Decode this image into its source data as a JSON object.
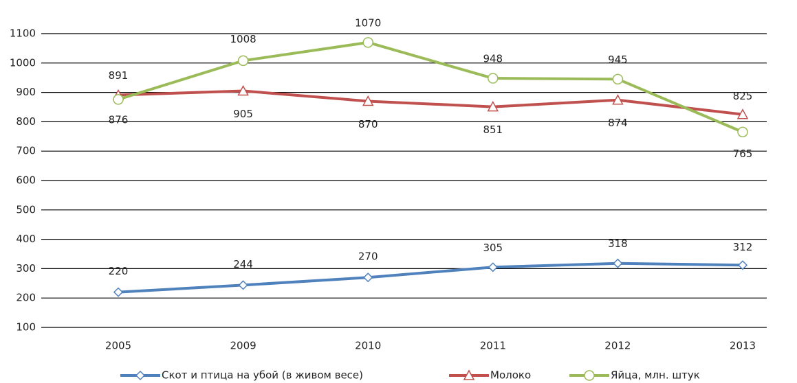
{
  "chart_data": {
    "type": "line",
    "categories": [
      "2005",
      "2009",
      "2010",
      "2011",
      "2012",
      "2013"
    ],
    "series": [
      {
        "name": "Скот и птица на убой (в живом весе)",
        "color": "#4f81bd",
        "marker": "diamond",
        "values": [
          220,
          244,
          270,
          305,
          318,
          312
        ]
      },
      {
        "name": "Молоко",
        "color": "#c0504d",
        "marker": "triangle",
        "values": [
          891,
          905,
          870,
          851,
          874,
          825
        ]
      },
      {
        "name": "Яйца, млн. штук",
        "color": "#9bbb59",
        "marker": "circle",
        "values": [
          876,
          1008,
          1070,
          948,
          945,
          765
        ]
      }
    ],
    "ylim": [
      100,
      1100
    ],
    "yticks": [
      100,
      200,
      300,
      400,
      500,
      600,
      700,
      800,
      900,
      1000,
      1100
    ],
    "grid": true,
    "legend": "bottom"
  }
}
